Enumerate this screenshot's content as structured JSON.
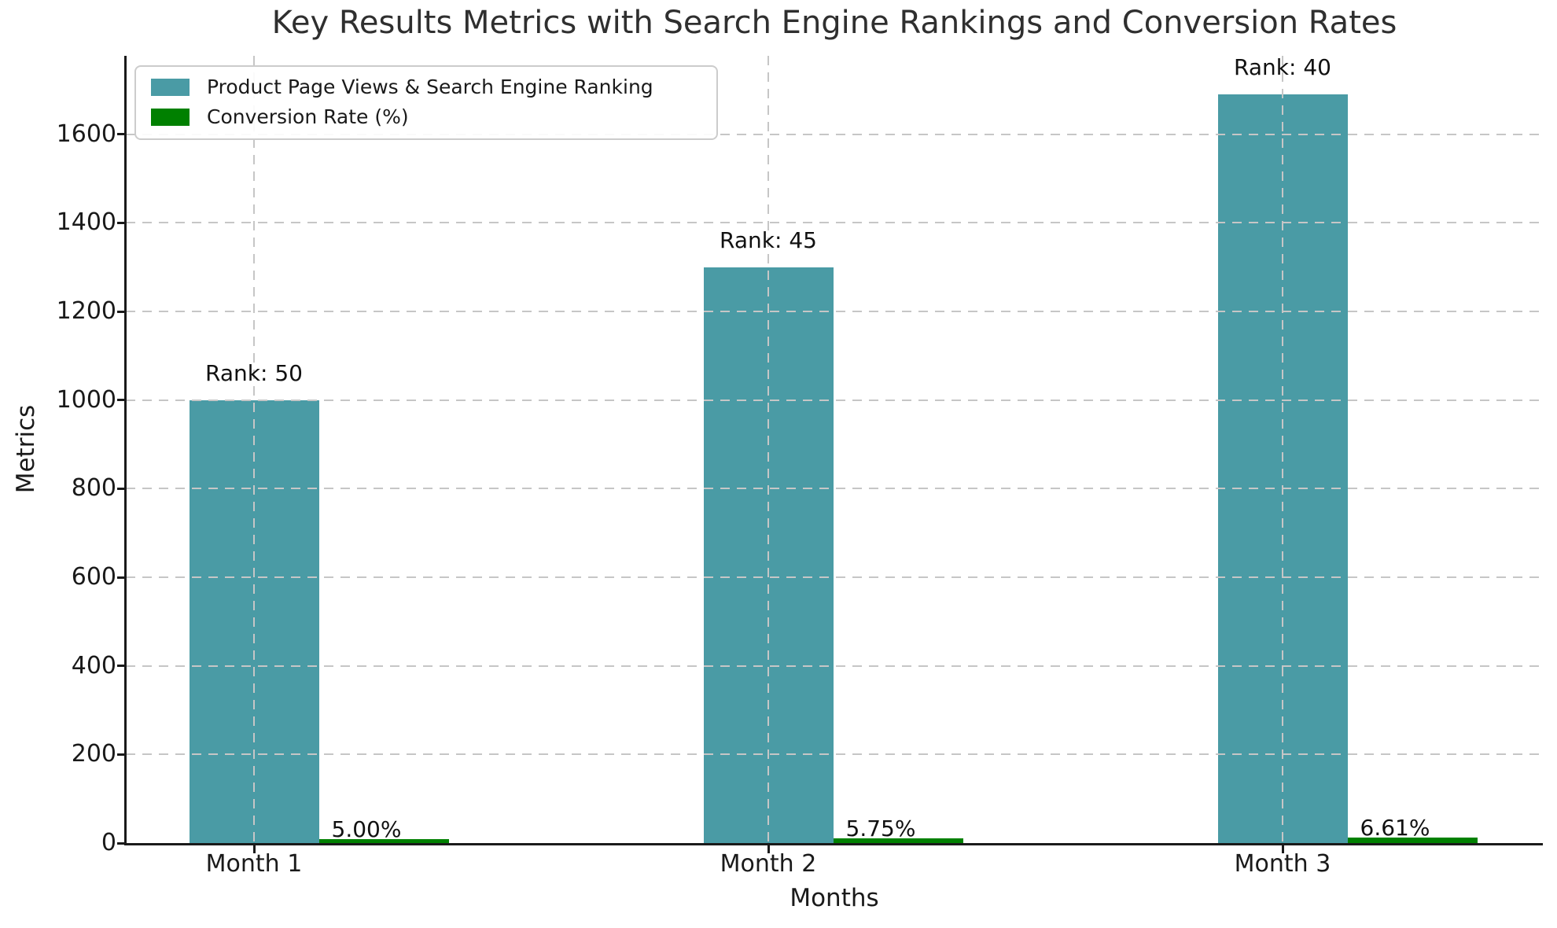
{
  "chart_data": {
    "type": "bar",
    "title": "Key Results Metrics with Search Engine Rankings and Conversion Rates",
    "xlabel": "Months",
    "ylabel": "Metrics",
    "categories": [
      "Month 1",
      "Month 2",
      "Month 3"
    ],
    "series": [
      {
        "name": "Product Page Views & Search Engine Ranking",
        "color": "#4A9BA5",
        "values": [
          1000,
          1300,
          1690
        ],
        "bar_labels": [
          "Rank: 50",
          "Rank: 45",
          "Rank: 40"
        ]
      },
      {
        "name": "Conversion Rate (%)",
        "color": "#008000",
        "values": [
          5.0,
          5.75,
          6.61
        ],
        "bar_labels": [
          "5.00%",
          "5.75%",
          "6.61%"
        ]
      }
    ],
    "yticks": [
      0,
      200,
      400,
      600,
      800,
      1000,
      1200,
      1400,
      1600
    ],
    "ylim": [
      0,
      1777
    ],
    "grid": true,
    "grid_style": "dashed",
    "grid_color": "#c6c6c6",
    "axis_color": "#1a1a1a",
    "legend_position": "upper left"
  }
}
